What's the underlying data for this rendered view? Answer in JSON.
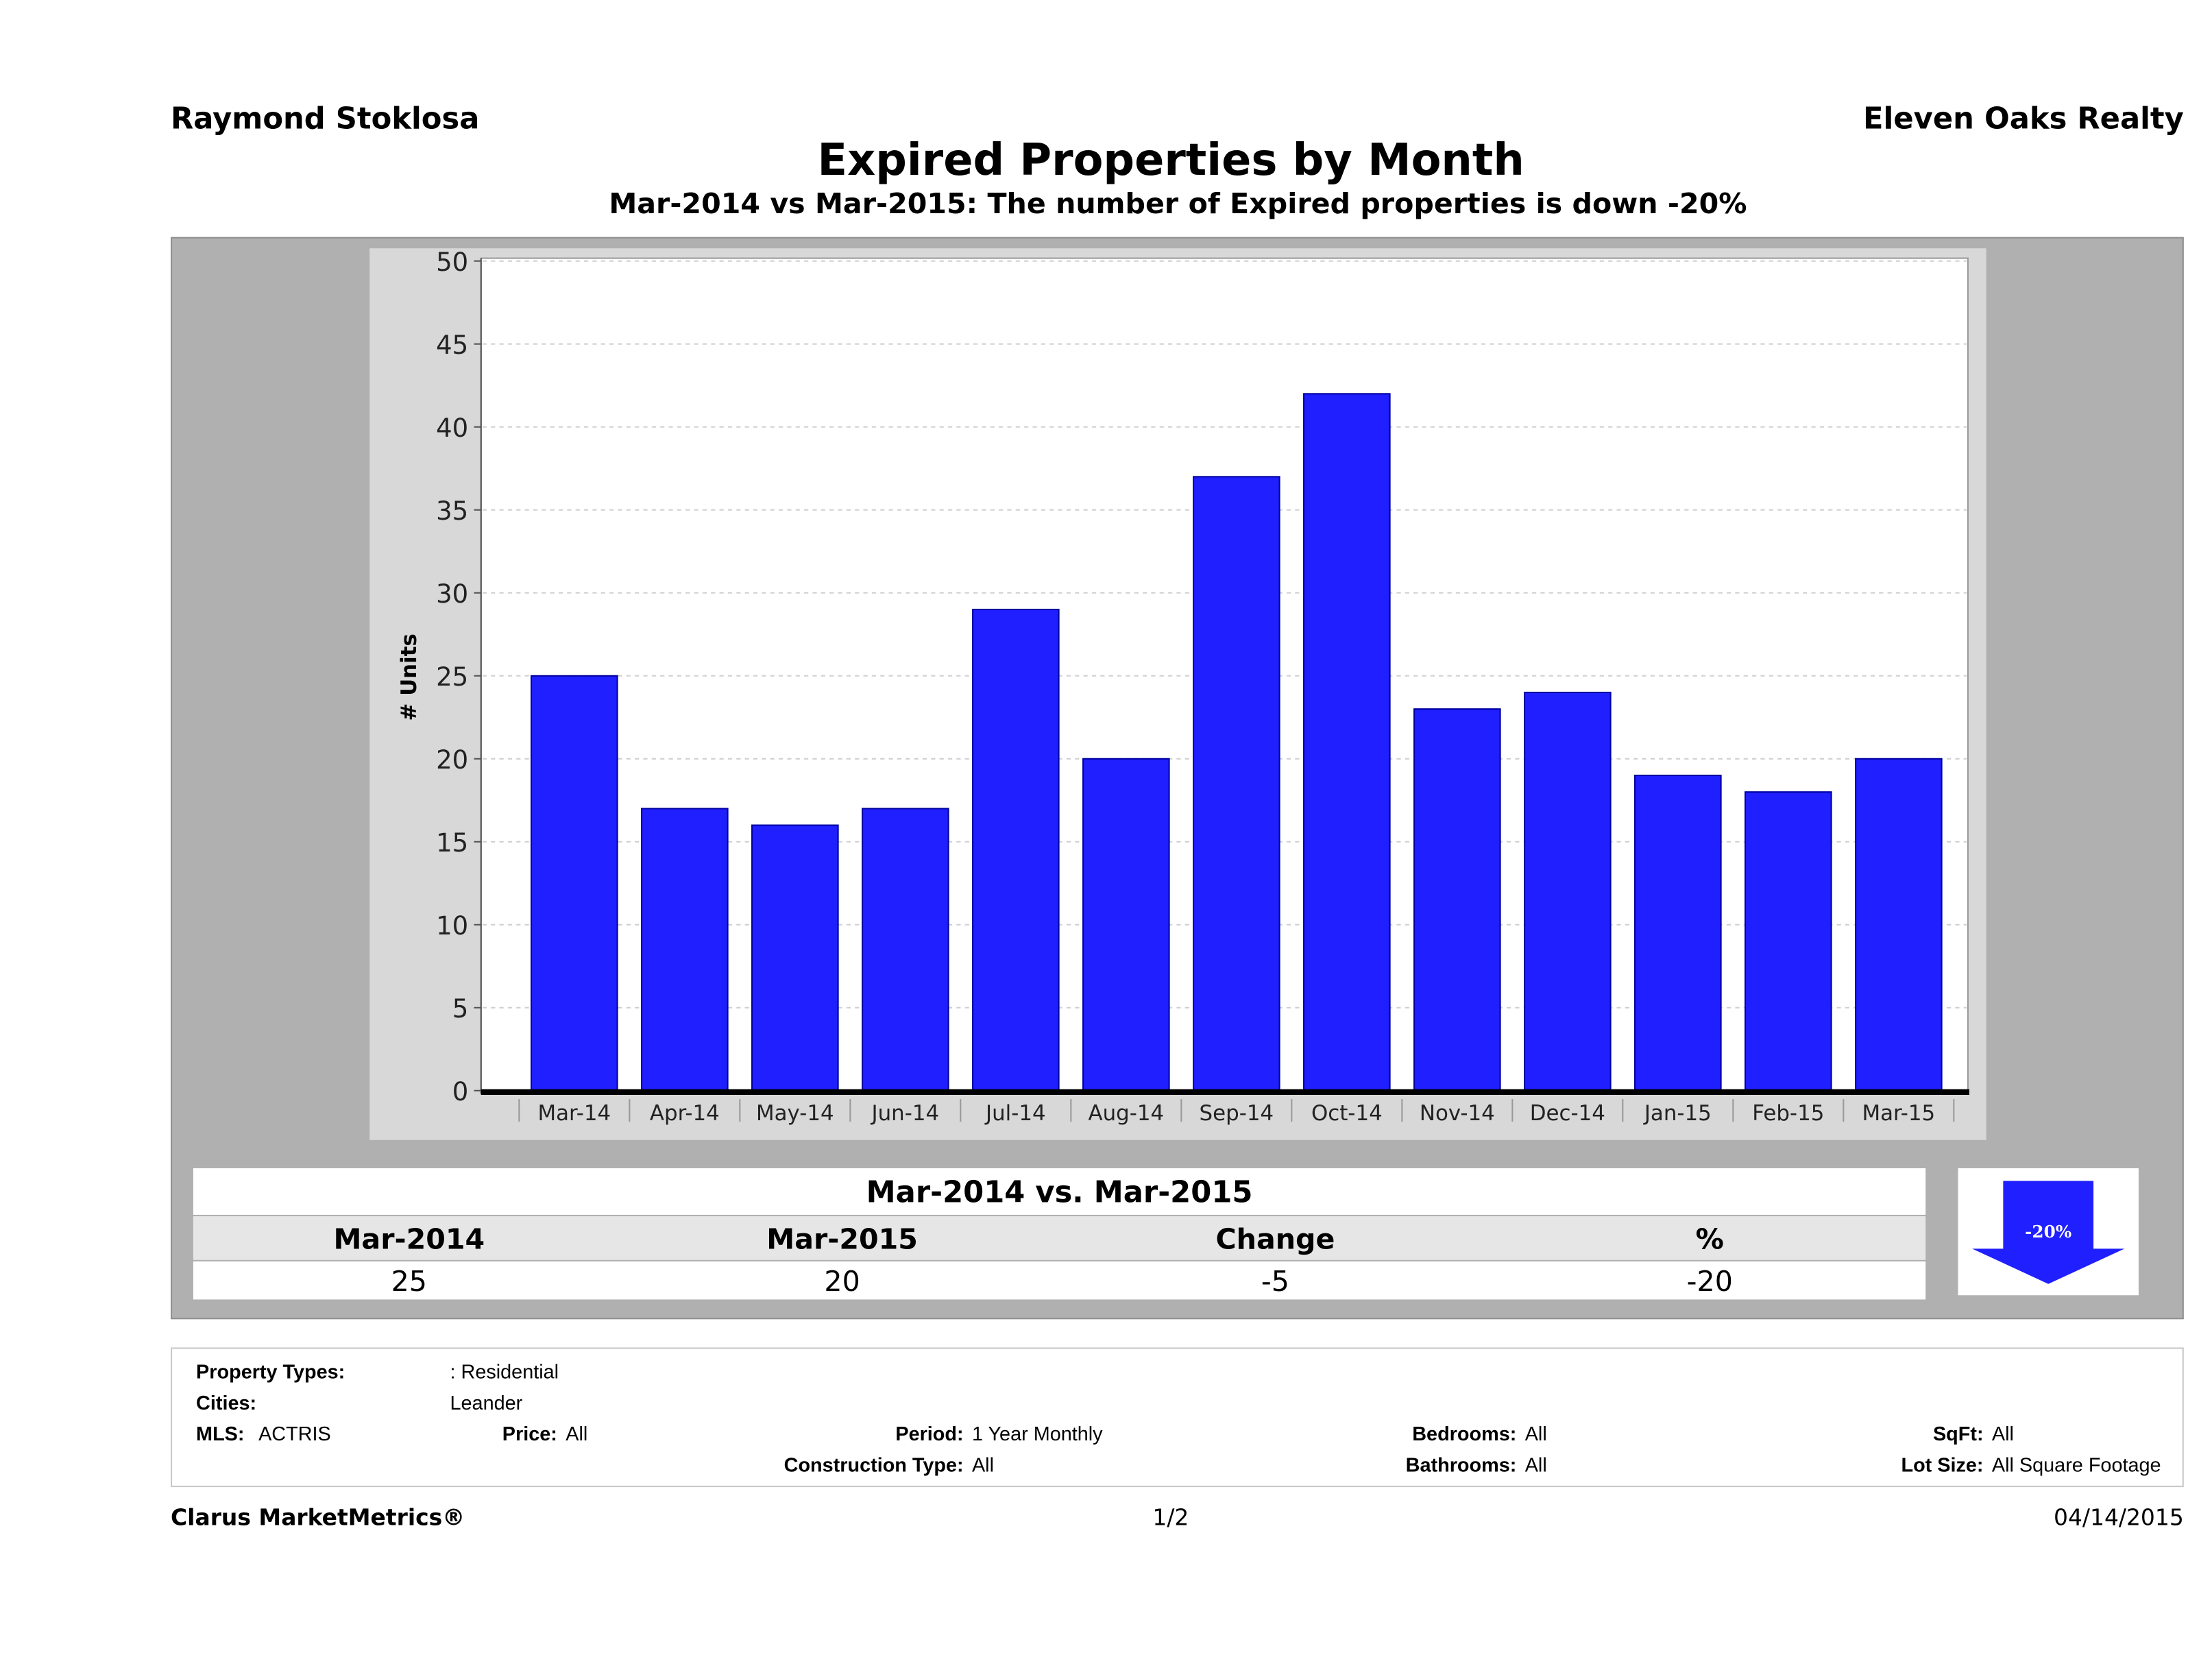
{
  "header": {
    "agent": "Raymond Stoklosa",
    "company": "Eleven Oaks Realty"
  },
  "chart_data": {
    "type": "bar",
    "title": "Expired Properties by Month",
    "subtitle": "Mar-2014 vs Mar-2015: The number of Expired  properties is down -20%",
    "xlabel": "",
    "ylabel": "# Units",
    "ylim": [
      0,
      50
    ],
    "yticks": [
      0,
      5,
      10,
      15,
      20,
      25,
      30,
      35,
      40,
      45,
      50
    ],
    "grid": true,
    "bar_color": "#1f1fff",
    "categories": [
      "Mar-14",
      "Apr-14",
      "May-14",
      "Jun-14",
      "Jul-14",
      "Aug-14",
      "Sep-14",
      "Oct-14",
      "Nov-14",
      "Dec-14",
      "Jan-15",
      "Feb-15",
      "Mar-15"
    ],
    "values": [
      25,
      17,
      16,
      17,
      29,
      20,
      37,
      42,
      23,
      24,
      19,
      18,
      20
    ]
  },
  "summary": {
    "title": "Mar-2014 vs. Mar-2015",
    "headers": [
      "Mar-2014",
      "Mar-2015",
      "Change",
      "%"
    ],
    "values": [
      "25",
      "20",
      "-5",
      "-20"
    ],
    "arrow_label": "-20%",
    "arrow_direction": "down",
    "arrow_color": "#1f1fff"
  },
  "filters": {
    "property_types_label": "Property Types:",
    "property_types": ": Residential",
    "cities_label": "Cities:",
    "cities": "Leander",
    "mls_label": "MLS:",
    "mls": "ACTRIS",
    "price_label": "Price:",
    "price": "All",
    "period_label": "Period:",
    "period": "1 Year Monthly",
    "construction_label": "Construction Type:",
    "construction": "All",
    "bedrooms_label": "Bedrooms:",
    "bedrooms": "All",
    "bathrooms_label": "Bathrooms:",
    "bathrooms": "All",
    "sqft_label": "SqFt:",
    "sqft": "All",
    "lot_label": "Lot Size:",
    "lot": "All Square Footage"
  },
  "footer": {
    "brand": "Clarus MarketMetrics®",
    "page": "1/2",
    "date": "04/14/2015"
  }
}
